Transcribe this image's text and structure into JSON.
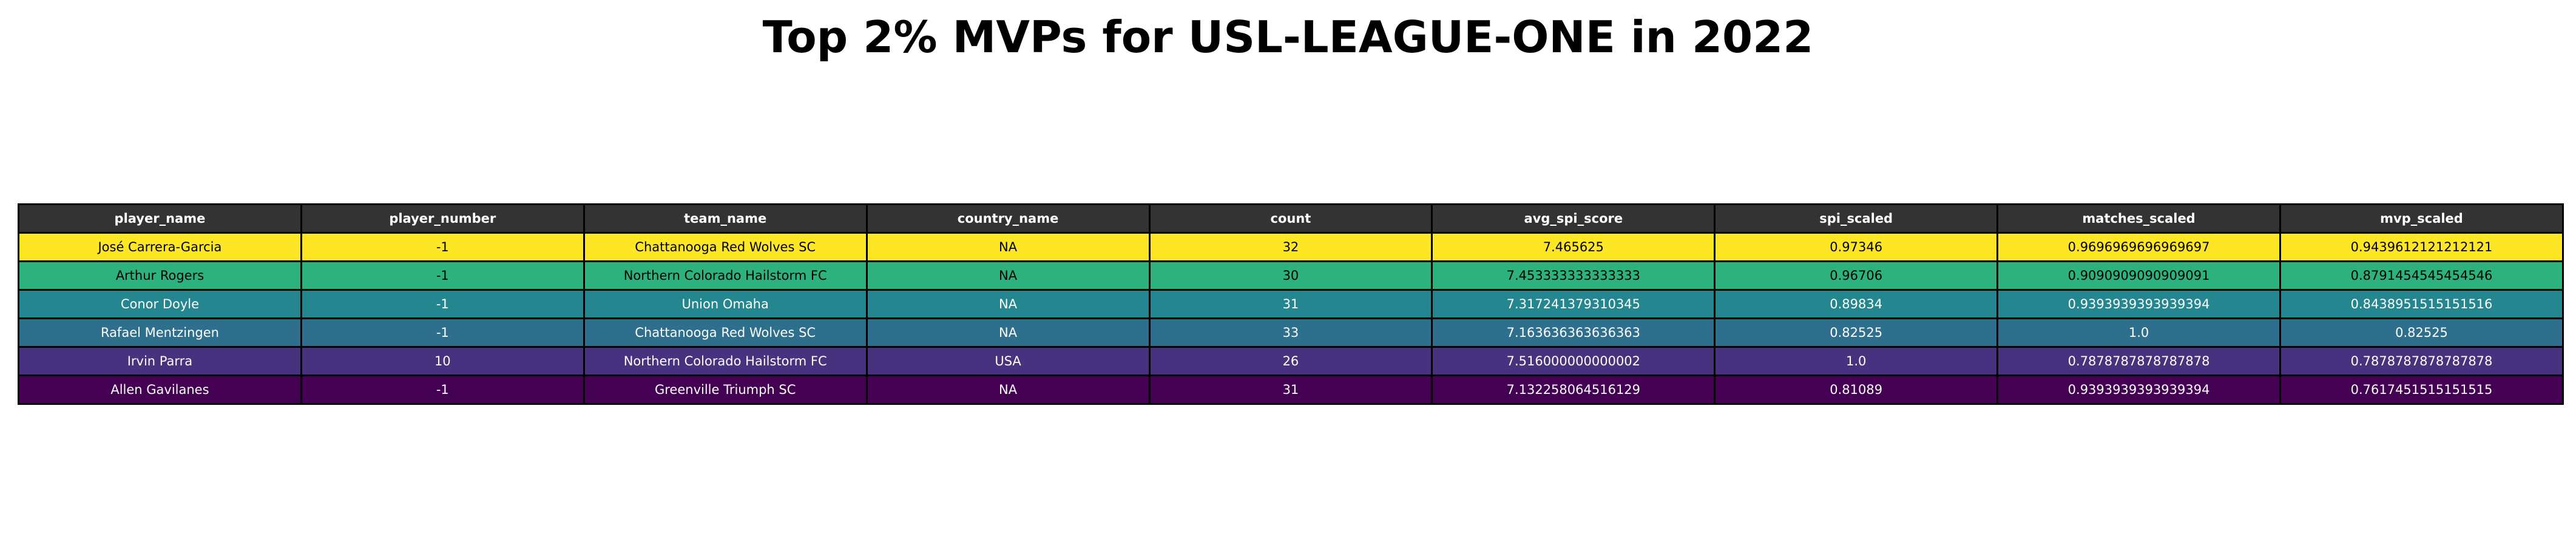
{
  "title": "Top 2% MVPs for USL-LEAGUE-ONE in 2022",
  "chart_data": {
    "type": "table",
    "title": "Top 2% MVPs for USL-LEAGUE-ONE in 2022",
    "columns": [
      "player_name",
      "player_number",
      "team_name",
      "country_name",
      "count",
      "avg_spi_score",
      "spi_scaled",
      "matches_scaled",
      "mvp_scaled"
    ],
    "header_style": {
      "background": "#333333",
      "color": "#ffffff"
    },
    "rows": [
      {
        "cells": [
          "José Carrera-Garcia",
          "-1",
          "Chattanooga Red Wolves SC",
          "NA",
          "32",
          "7.465625",
          "0.97346",
          "0.9696969696969697",
          "0.9439612121212121"
        ],
        "background": "#fde725",
        "text_color": "#000000"
      },
      {
        "cells": [
          "Arthur Rogers",
          "-1",
          "Northern Colorado Hailstorm FC",
          "NA",
          "30",
          "7.453333333333333",
          "0.96706",
          "0.9090909090909091",
          "0.8791454545454546"
        ],
        "background": "#2db27d",
        "text_color": "#000000"
      },
      {
        "cells": [
          "Conor Doyle",
          "-1",
          "Union Omaha",
          "NA",
          "31",
          "7.317241379310345",
          "0.89834",
          "0.9393939393939394",
          "0.8438951515151516"
        ],
        "background": "#24868e",
        "text_color": "#ffffff"
      },
      {
        "cells": [
          "Rafael Mentzingen",
          "-1",
          "Chattanooga Red Wolves SC",
          "NA",
          "33",
          "7.163636363636363",
          "0.82525",
          "1.0",
          "0.82525"
        ],
        "background": "#2e6f8e",
        "text_color": "#ffffff"
      },
      {
        "cells": [
          "Irvin Parra",
          "10",
          "Northern Colorado Hailstorm FC",
          "USA",
          "26",
          "7.516000000000002",
          "1.0",
          "0.7878787878787878",
          "0.7878787878787878"
        ],
        "background": "#46327e",
        "text_color": "#ffffff"
      },
      {
        "cells": [
          "Allen Gavilanes",
          "-1",
          "Greenville Triumph SC",
          "NA",
          "31",
          "7.132258064516129",
          "0.81089",
          "0.9393939393939394",
          "0.7617451515151515"
        ],
        "background": "#440154",
        "text_color": "#ffffff"
      }
    ]
  }
}
